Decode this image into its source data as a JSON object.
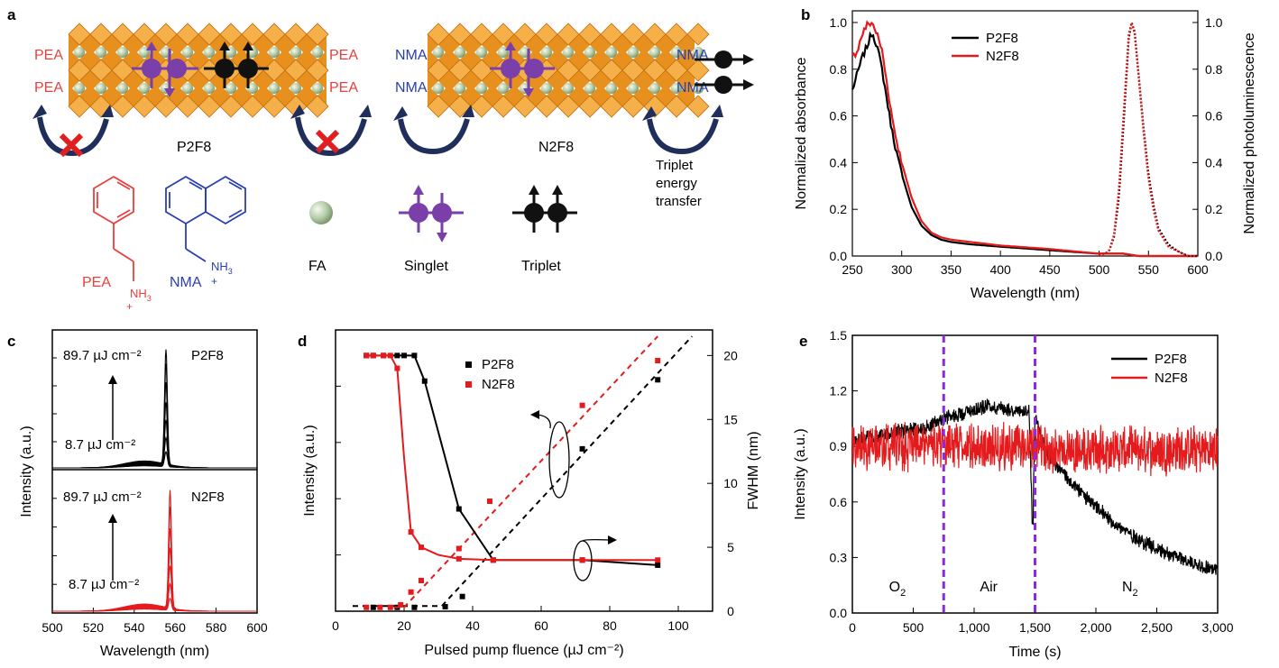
{
  "panels": {
    "a": {
      "letter": "a",
      "left_label": "P2F8",
      "right_label": "N2F8",
      "left_cation": "PEA",
      "right_cation": "NMA",
      "transfer_label": [
        "Triplet",
        "energy",
        "transfer"
      ],
      "legend": {
        "pea": "PEA",
        "nma": "NMA",
        "ammonium": "NH",
        "ammonium_sub": "3",
        "plus": "+",
        "fa": "FA",
        "singlet": "Singlet",
        "triplet": "Triplet"
      },
      "colors": {
        "octahedra": "#e8901e",
        "sphere": "#b6ccaa",
        "pea": "#e8403c",
        "nma": "#2a3fb0",
        "singlet": "#7a3fa8",
        "triplet": "#111111",
        "cross": "#e02020",
        "arrow": "#1f2e5a"
      }
    },
    "b": {
      "letter": "b"
    },
    "c": {
      "letter": "c"
    },
    "d": {
      "letter": "d"
    },
    "e": {
      "letter": "e"
    }
  },
  "chart_data": [
    {
      "panel": "b",
      "type": "line",
      "xlabel": "Wavelength (nm)",
      "ylabel": "Normalized absorbance",
      "ylabel_right": "Normalized photoluminescence",
      "xlim": [
        250,
        600
      ],
      "ylim": [
        0,
        1.05
      ],
      "xticks": [
        250,
        300,
        350,
        400,
        450,
        500,
        550,
        600
      ],
      "yticks": [
        0.0,
        0.2,
        0.4,
        0.6,
        0.8,
        1.0
      ],
      "ytick_labels": [
        "0.0",
        "0.2",
        "0.4",
        "0.6",
        "0.8",
        "1.0"
      ],
      "legend_position": "top-center",
      "series": [
        {
          "name": "P2F8",
          "kind": "absorbance",
          "color": "#000000",
          "x": [
            250,
            255,
            260,
            265,
            270,
            275,
            280,
            285,
            290,
            295,
            300,
            310,
            320,
            330,
            340,
            350,
            370,
            400,
            450,
            500,
            525,
            540,
            560,
            600
          ],
          "y": [
            0.71,
            0.78,
            0.85,
            0.9,
            0.96,
            0.9,
            0.8,
            0.67,
            0.54,
            0.44,
            0.35,
            0.21,
            0.13,
            0.09,
            0.07,
            0.06,
            0.05,
            0.04,
            0.025,
            0.01,
            0.01,
            0.0,
            0.0,
            0.0
          ]
        },
        {
          "name": "N2F8",
          "kind": "absorbance",
          "color": "#e41a1c",
          "x": [
            250,
            255,
            260,
            265,
            270,
            275,
            280,
            285,
            290,
            295,
            300,
            310,
            320,
            330,
            340,
            350,
            370,
            400,
            450,
            500,
            525,
            540,
            560,
            600
          ],
          "y": [
            0.85,
            0.88,
            0.95,
            0.99,
            1.0,
            0.95,
            0.88,
            0.74,
            0.6,
            0.49,
            0.4,
            0.25,
            0.15,
            0.1,
            0.08,
            0.07,
            0.06,
            0.045,
            0.03,
            0.01,
            0.01,
            0.0,
            0.0,
            0.0
          ]
        },
        {
          "name": "P2F8",
          "kind": "photoluminescence",
          "color": "#000000",
          "x": [
            500,
            510,
            515,
            520,
            525,
            530,
            533,
            536,
            540,
            545,
            550,
            555,
            560,
            570,
            580,
            590,
            600
          ],
          "y": [
            0.0,
            0.02,
            0.08,
            0.25,
            0.58,
            0.93,
            1.0,
            0.96,
            0.78,
            0.55,
            0.35,
            0.22,
            0.12,
            0.05,
            0.02,
            0.0,
            0.0
          ]
        },
        {
          "name": "N2F8",
          "kind": "photoluminescence",
          "color": "#e41a1c",
          "x": [
            500,
            510,
            515,
            520,
            525,
            530,
            533,
            536,
            540,
            545,
            550,
            555,
            560,
            570,
            580,
            590,
            600
          ],
          "y": [
            0.0,
            0.02,
            0.09,
            0.28,
            0.62,
            0.95,
            1.0,
            0.95,
            0.77,
            0.53,
            0.33,
            0.2,
            0.11,
            0.04,
            0.02,
            0.0,
            0.0
          ]
        }
      ],
      "legend": [
        "P2F8",
        "N2F8"
      ]
    },
    {
      "panel": "c",
      "type": "line",
      "xlabel": "Wavelength (nm)",
      "ylabel": "Intensity (a.u.)",
      "xlim": [
        500,
        600
      ],
      "xticks": [
        500,
        520,
        540,
        560,
        580,
        600
      ],
      "annotations": {
        "top_high": "89.7 µJ cm⁻²",
        "top_low": "8.7 µJ cm⁻²",
        "top_name": "P2F8",
        "bottom_high": "89.7 µJ cm⁻²",
        "bottom_low": "8.7 µJ cm⁻²",
        "bottom_name": "N2F8"
      },
      "series": [
        {
          "name": "P2F8",
          "color": "#000000",
          "peak_nm": 555.5,
          "fwhm_nm": 1.6,
          "peak_values": [
            0.13,
            0.25,
            0.4,
            0.55,
            0.72,
            0.88,
            1.0
          ],
          "background": 0.06
        },
        {
          "name": "N2F8",
          "color": "#e41a1c",
          "peak_nm": 557.5,
          "fwhm_nm": 1.6,
          "peak_values": [
            0.1,
            0.22,
            0.37,
            0.52,
            0.68,
            0.86,
            1.0
          ],
          "background": 0.06
        }
      ]
    },
    {
      "panel": "d",
      "type": "scatter",
      "xlabel": "Pulsed pump fluence (µJ cm⁻²)",
      "ylabel": "Intensity (a.u.)",
      "ylabel_right": "FWHM (nm)",
      "xlim": [
        0,
        110
      ],
      "ylim": [
        0,
        22
      ],
      "ylim_right": [
        0,
        22
      ],
      "xticks": [
        0,
        20,
        40,
        60,
        80,
        100
      ],
      "yticks_right": [
        0,
        5,
        10,
        15,
        20
      ],
      "legend_position": "top-center",
      "series": [
        {
          "name": "P2F8",
          "quantity": "intensity",
          "color": "#000000",
          "x": [
            11,
            18,
            23,
            32,
            37,
            72,
            94
          ],
          "y": [
            0.3,
            0.3,
            0.3,
            0.35,
            1.15,
            12.7,
            18.1
          ],
          "fit_x": [
            5,
            31,
            104
          ],
          "fit_y": [
            0.4,
            0.4,
            21.5
          ]
        },
        {
          "name": "N2F8",
          "quantity": "intensity",
          "color": "#e41a1c",
          "x": [
            9,
            13,
            16,
            19,
            22,
            25,
            36,
            45,
            72,
            94
          ],
          "y": [
            0.3,
            0.3,
            0.3,
            0.5,
            1.5,
            2.4,
            4.9,
            8.6,
            16.1,
            19.6
          ],
          "fit_x": [
            17,
            20,
            94
          ],
          "fit_y": [
            0.3,
            0.3,
            21.5
          ]
        },
        {
          "name": "P2F8",
          "quantity": "FWHM",
          "color": "#000000",
          "x": [
            9,
            11,
            14,
            18,
            20,
            23,
            26,
            36,
            46,
            72,
            94
          ],
          "y": [
            20,
            20,
            20,
            20,
            20,
            20,
            18,
            8,
            4.0,
            4.0,
            3.6
          ],
          "fit_x": [
            9,
            22,
            23,
            26,
            36,
            46,
            72,
            94
          ],
          "fit_y": [
            20,
            20,
            20,
            18,
            8,
            4.0,
            4.0,
            3.6
          ]
        },
        {
          "name": "N2F8",
          "quantity": "FWHM",
          "color": "#e41a1c",
          "x": [
            9,
            11,
            14,
            16,
            18,
            22,
            25,
            36,
            46,
            72,
            94
          ],
          "y": [
            20,
            20,
            20,
            20,
            19,
            6.2,
            5.0,
            4.1,
            4.0,
            4.0,
            4.0
          ],
          "fit_x": [
            9,
            16,
            18,
            20,
            22,
            25,
            30,
            36,
            46,
            72,
            94
          ],
          "fit_y": [
            20,
            20,
            19,
            12,
            6.2,
            5.0,
            4.4,
            4.1,
            4.0,
            4.0,
            4.0
          ]
        }
      ],
      "legend": [
        "P2F8",
        "N2F8"
      ]
    },
    {
      "panel": "e",
      "type": "line",
      "xlabel": "Time (s)",
      "ylabel": "Intensity (a.u.)",
      "xlim": [
        0,
        3000
      ],
      "ylim": [
        0,
        1.5
      ],
      "xticks": [
        0,
        500,
        1000,
        1500,
        2000,
        2500,
        3000
      ],
      "xtick_labels": [
        "0",
        "500",
        "1,000",
        "1,500",
        "2,000",
        "2,500",
        "3,000"
      ],
      "yticks": [
        0.0,
        0.3,
        0.6,
        0.9,
        1.2,
        1.5
      ],
      "ytick_labels": [
        "0.0",
        "0.3",
        "0.6",
        "0.9",
        "1.2",
        "1.5"
      ],
      "markers": [
        750,
        1500
      ],
      "regions": [
        {
          "label": "O",
          "sub": "2",
          "x": 370
        },
        {
          "label": "Air",
          "sub": "",
          "x": 1120
        },
        {
          "label": "N",
          "sub": "2",
          "x": 2280
        }
      ],
      "legend_position": "top-right",
      "series": [
        {
          "name": "P2F8",
          "color": "#000000",
          "x": [
            0,
            300,
            600,
            750,
            900,
            1100,
            1300,
            1450,
            1480,
            1500,
            1600,
            1800,
            2000,
            2200,
            2400,
            2600,
            2800,
            3000
          ],
          "y": [
            0.93,
            0.97,
            1.0,
            1.05,
            1.08,
            1.12,
            1.1,
            1.08,
            0.48,
            1.05,
            0.86,
            0.7,
            0.57,
            0.46,
            0.38,
            0.32,
            0.27,
            0.23
          ],
          "noise": 0.035
        },
        {
          "name": "N2F8",
          "color": "#e41a1c",
          "x": [
            0,
            1000,
            2000,
            3000
          ],
          "y": [
            0.9,
            0.9,
            0.88,
            0.88
          ],
          "noise": 0.11
        }
      ],
      "legend": [
        "P2F8",
        "N2F8"
      ]
    }
  ]
}
